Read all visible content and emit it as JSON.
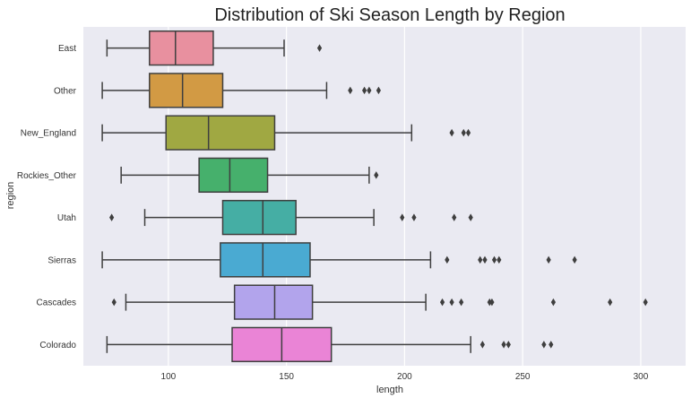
{
  "chart_data": {
    "type": "boxplot",
    "orientation": "horizontal",
    "title": "Distribution of Ski Season Length by Region",
    "xlabel": "length",
    "ylabel": "region",
    "xlim": [
      64,
      319
    ],
    "xticks": [
      100,
      150,
      200,
      250,
      300
    ],
    "grid": true,
    "legend": "none",
    "background": "#eaeaf2",
    "series": [
      {
        "name": "East",
        "color": "#e8909f",
        "whisker_low": 74,
        "q1": 92,
        "median": 103,
        "q3": 119,
        "whisker_high": 149,
        "outliers": [
          164
        ]
      },
      {
        "name": "Other",
        "color": "#d29a44",
        "whisker_low": 72,
        "q1": 92,
        "median": 106,
        "q3": 123,
        "whisker_high": 167,
        "outliers": [
          177,
          183,
          185,
          189
        ]
      },
      {
        "name": "New_England",
        "color": "#a0a842",
        "whisker_low": 72,
        "q1": 99,
        "median": 117,
        "q3": 145,
        "whisker_high": 203,
        "outliers": [
          220,
          225,
          227
        ]
      },
      {
        "name": "Rockies_Other",
        "color": "#46b06c",
        "whisker_low": 80,
        "q1": 113,
        "median": 126,
        "q3": 142,
        "whisker_high": 185,
        "outliers": [
          188
        ]
      },
      {
        "name": "Utah",
        "color": "#45aea4",
        "whisker_low": 90,
        "q1": 123,
        "median": 140,
        "q3": 154,
        "whisker_high": 187,
        "outliers": [
          76,
          199,
          204,
          221,
          228
        ]
      },
      {
        "name": "Sierras",
        "color": "#4aaad2",
        "whisker_low": 72,
        "q1": 122,
        "median": 140,
        "q3": 160,
        "whisker_high": 211,
        "outliers": [
          218,
          232,
          234,
          238,
          240,
          261,
          272
        ]
      },
      {
        "name": "Cascades",
        "color": "#b2a4ec",
        "whisker_low": 82,
        "q1": 128,
        "median": 145,
        "q3": 161,
        "whisker_high": 209,
        "outliers": [
          77,
          216,
          220,
          224,
          236,
          237,
          263,
          287,
          302
        ]
      },
      {
        "name": "Colorado",
        "color": "#ea84d6",
        "whisker_low": 74,
        "q1": 127,
        "median": 148,
        "q3": 169,
        "whisker_high": 228,
        "outliers": [
          233,
          242,
          244,
          259,
          262
        ]
      }
    ]
  }
}
